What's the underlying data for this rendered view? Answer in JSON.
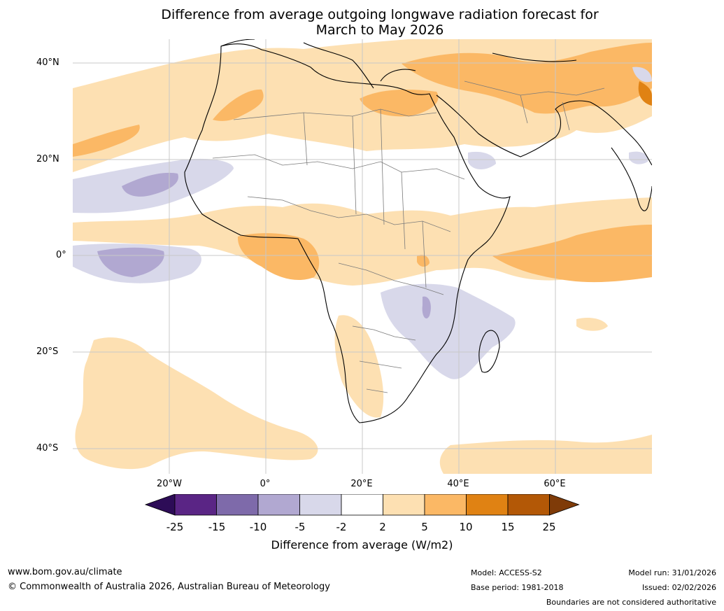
{
  "title": {
    "line1": "Difference from average outgoing longwave radiation forecast for",
    "line2": "March to May 2026"
  },
  "axes": {
    "lat_ticks": [
      "40°N",
      "20°N",
      "0°",
      "20°S",
      "40°S"
    ],
    "lon_ticks": [
      "20°W",
      "0°",
      "20°E",
      "40°E",
      "60°E"
    ]
  },
  "colorbar": {
    "ticks": [
      "-25",
      "-15",
      "-10",
      "-5",
      "-2",
      "2",
      "5",
      "10",
      "15",
      "25"
    ],
    "label": "Difference from average (W/m2)",
    "colors": [
      "#2d0c57",
      "#5a2585",
      "#7e6aaa",
      "#b1a8d1",
      "#d8d8ea",
      "#ffffff",
      "#fde0b2",
      "#fbb865",
      "#e08213",
      "#b35806",
      "#7f3b08"
    ]
  },
  "footer": {
    "website": "www.bom.gov.au/climate",
    "copyright": "© Commonwealth of Australia 2026, Australian Bureau of Meteorology",
    "model": "Model: ACCESS-S2",
    "base_period": "Base period: 1981-2018",
    "model_run": "Model run: 31/01/2026",
    "issued": "Issued: 02/02/2026",
    "disclaimer": "Boundaries are not considered authoritative"
  },
  "map_colors": {
    "light_orange": "#fde0b2",
    "orange": "#fbb865",
    "dark_orange": "#e08213",
    "light_purple": "#d8d8ea",
    "purple": "#b1a8d1",
    "grid": "#c8c8c8",
    "coast": "#000000",
    "border": "#7a7a7a"
  }
}
